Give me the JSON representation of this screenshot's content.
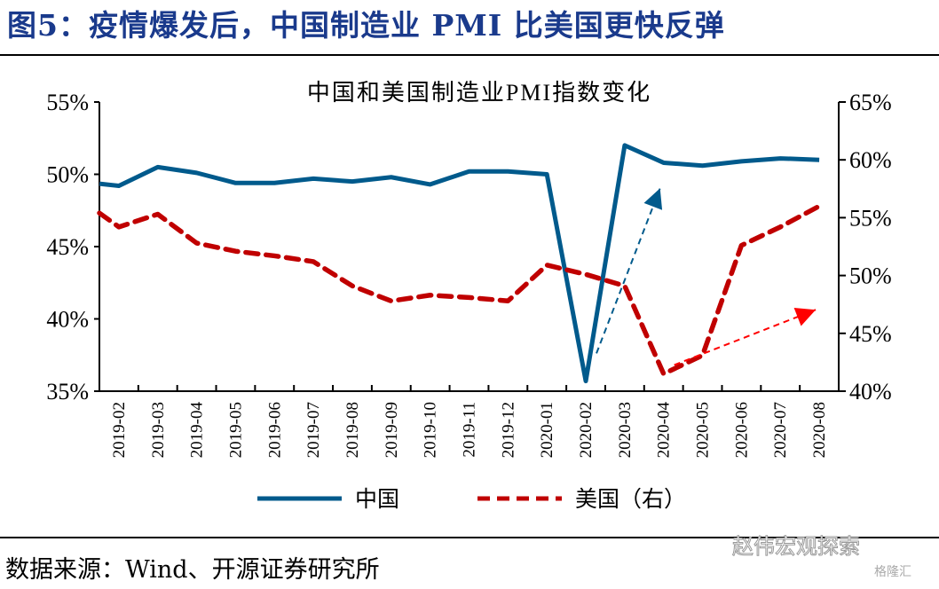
{
  "figure_title": "图5：疫情爆发后，中国制造业 PMI 比美国更快反弹",
  "source": "数据来源：Wind、开源证券研究所",
  "watermark": "赵伟宏观探索",
  "watermark_sub": "格隆汇",
  "colors": {
    "china": "#005a8c",
    "us": "#c00000",
    "title": "#1a3a8c",
    "us_arrow": "#ff0000"
  },
  "chart_data": {
    "type": "line",
    "title": "中国和美国制造业PMI指数变化",
    "categories": [
      "2019-02",
      "2019-03",
      "2019-04",
      "2019-05",
      "2019-06",
      "2019-07",
      "2019-08",
      "2019-09",
      "2019-10",
      "2019-11",
      "2019-12",
      "2020-01",
      "2020-02",
      "2020-03",
      "2020-04",
      "2020-05",
      "2020-06",
      "2020-07",
      "2020-08"
    ],
    "left_axis": {
      "range": [
        35,
        55
      ],
      "ticks": [
        "35%",
        "40%",
        "45%",
        "50%",
        "55%"
      ],
      "tick_values": [
        35,
        40,
        45,
        50,
        55
      ]
    },
    "right_axis": {
      "range": [
        40,
        65
      ],
      "ticks": [
        "40%",
        "45%",
        "50%",
        "55%",
        "60%",
        "65%"
      ],
      "tick_values": [
        40,
        45,
        50,
        55,
        60,
        65
      ]
    },
    "series": [
      {
        "name": "中国",
        "axis": "left",
        "style": "solid",
        "prior_value": 49.5,
        "values": [
          49.2,
          50.5,
          50.1,
          49.4,
          49.4,
          49.7,
          49.5,
          49.8,
          49.3,
          50.2,
          50.2,
          50.0,
          35.7,
          52.0,
          50.8,
          50.6,
          50.9,
          51.1,
          51.0
        ]
      },
      {
        "name": "美国（右）",
        "axis": "right",
        "style": "dashed",
        "prior_value": 56.6,
        "values": [
          54.2,
          55.3,
          52.8,
          52.1,
          51.7,
          51.2,
          49.1,
          47.8,
          48.3,
          48.1,
          47.8,
          50.9,
          50.1,
          49.1,
          41.5,
          43.1,
          52.6,
          54.2,
          56.0
        ]
      }
    ],
    "annotations": [
      {
        "type": "arrow",
        "color": "china",
        "from": {
          "category": "2020-02",
          "right_value": 42.5
        },
        "to": {
          "category": "2020-04",
          "right_value": 58
        }
      },
      {
        "type": "arrow",
        "color": "us",
        "from": {
          "category": "2020-04",
          "right_value": 41.5
        },
        "to": {
          "category": "2020-08",
          "right_value": 47.5
        }
      }
    ],
    "legend_position": "bottom",
    "grid": false
  }
}
